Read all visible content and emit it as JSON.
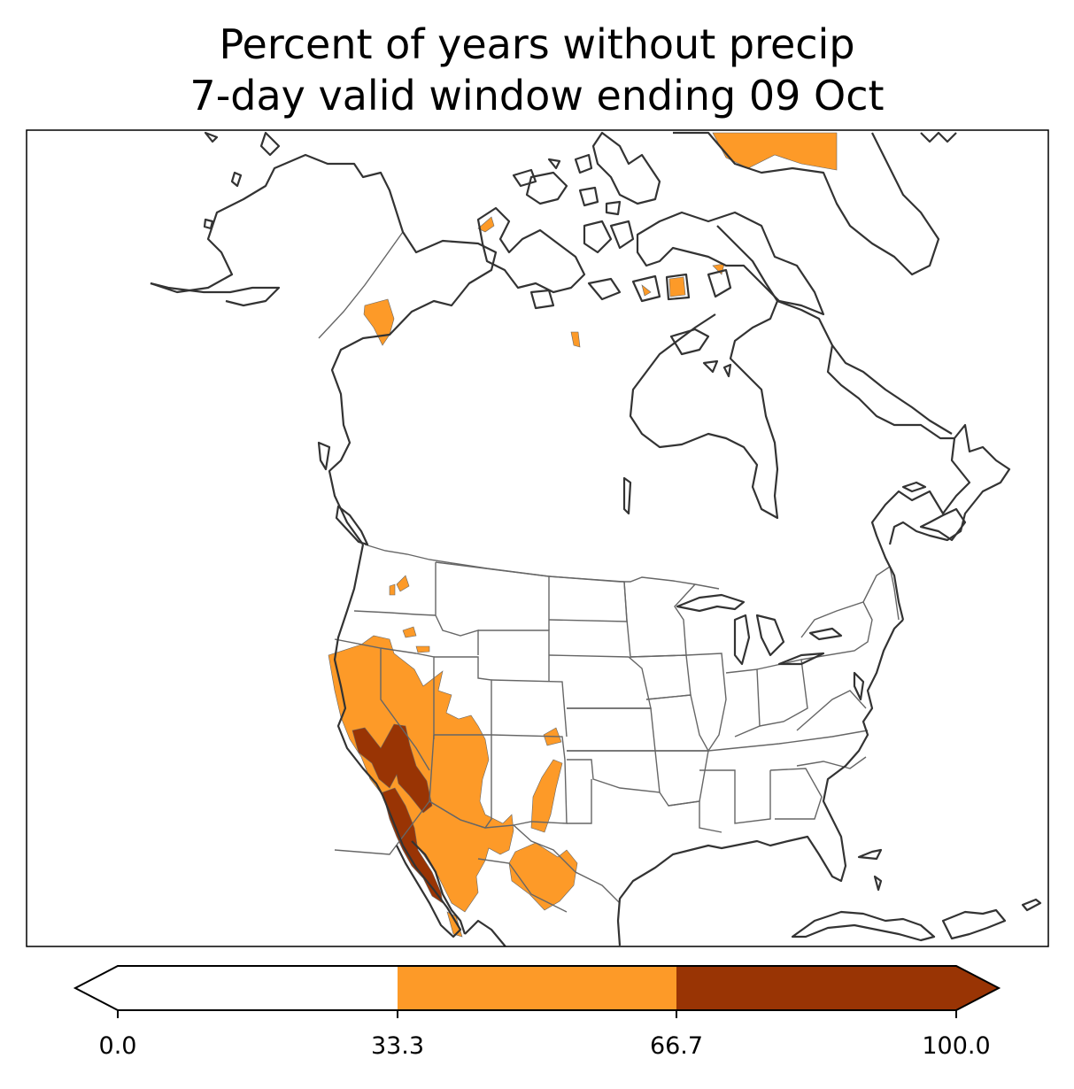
{
  "title": {
    "line1": "Percent of years without precip",
    "line2": "7-day valid window ending 09 Oct"
  },
  "colorbar": {
    "ticks": [
      "0.0",
      "33.3",
      "66.7",
      "100.0"
    ],
    "bins": [
      {
        "range": "0.0-33.3",
        "color": "#ffffff"
      },
      {
        "range": "33.3-66.7",
        "color": "#fd9a28"
      },
      {
        "range": "66.7-100.0",
        "color": "#993404"
      }
    ],
    "extend": "both"
  },
  "colors": {
    "coastline": "#333333",
    "borders": "#666666",
    "low": "#ffffff",
    "mid": "#fd9a28",
    "high": "#993404"
  }
}
